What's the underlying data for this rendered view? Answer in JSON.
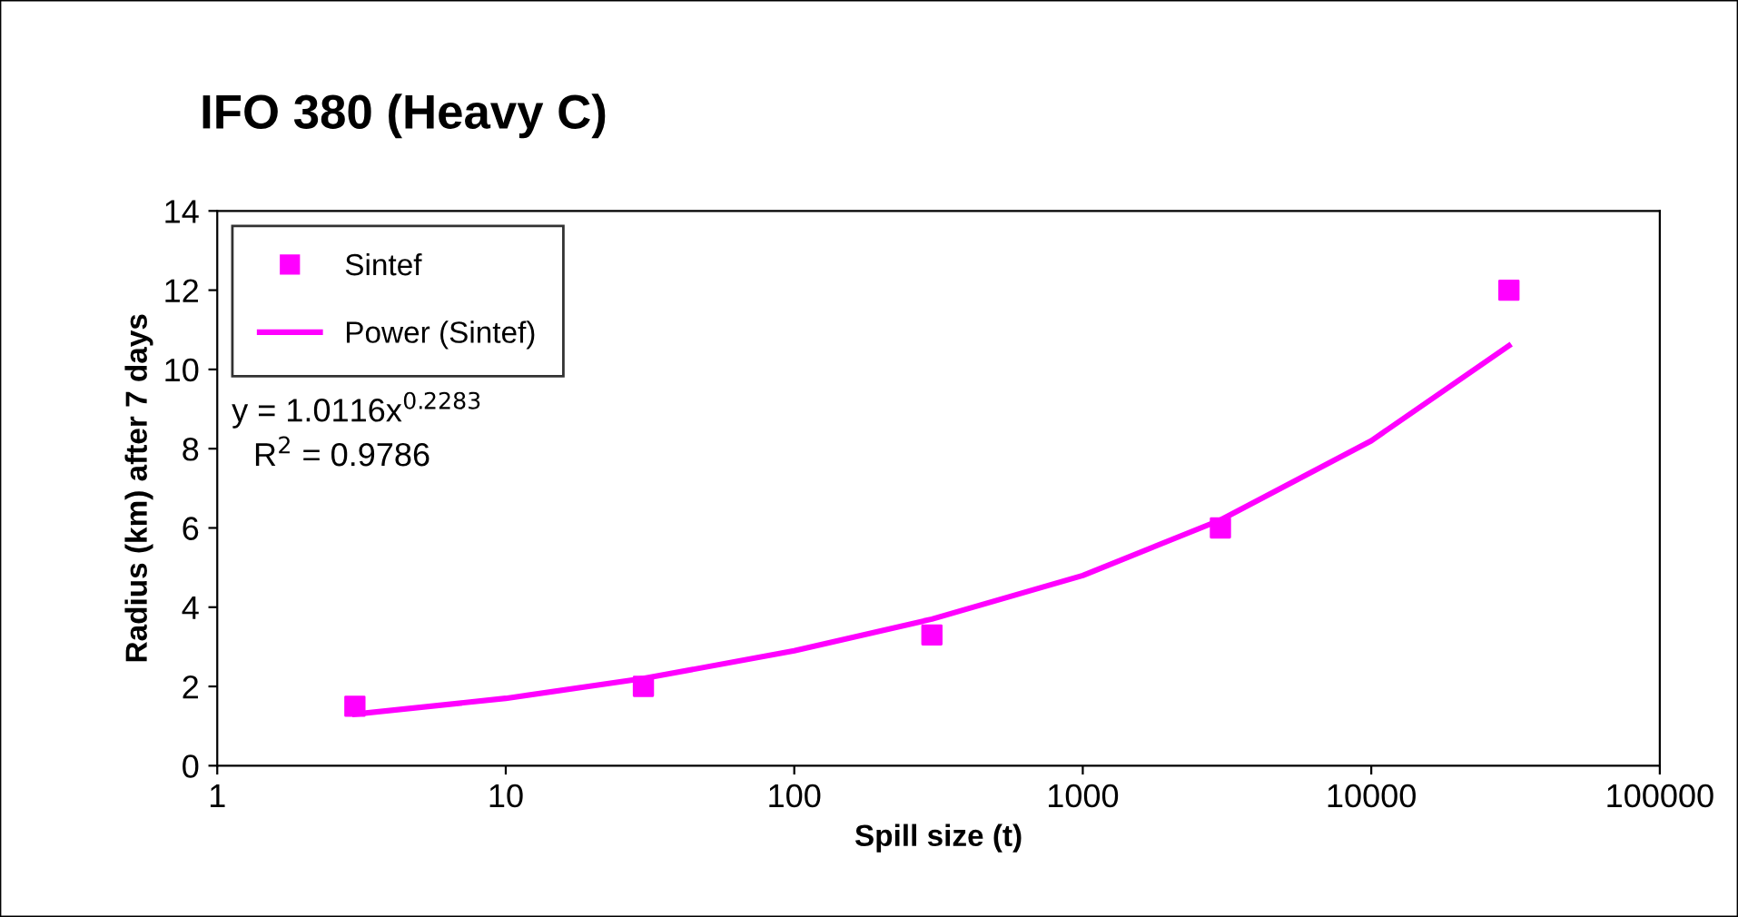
{
  "chart_data": {
    "type": "scatter",
    "title": "IFO 380 (Heavy C)",
    "xlabel": "Spill size (t)",
    "ylabel": "Radius (km) after 7 days",
    "x": [
      3,
      30,
      300,
      3000,
      30000
    ],
    "series": [
      {
        "name": "Sintef",
        "marker": "square",
        "color": "#ff00ff",
        "values": [
          1.5,
          2.0,
          3.3,
          6.0,
          12.0
        ]
      },
      {
        "name": "Power (Sintef)",
        "type": "line",
        "marker": "none",
        "line_style": "solid",
        "color": "#ff00ff",
        "x": [
          3,
          10,
          30,
          100,
          300,
          1000,
          3000,
          10000,
          30000
        ],
        "values": [
          1.3,
          1.7,
          2.2,
          2.9,
          3.7,
          4.8,
          6.2,
          8.2,
          10.6
        ]
      }
    ],
    "annotations": [
      "y = 1.0116x$^{0.2283}$",
      "R$^{2}$ = 0.9786"
    ],
    "log": "x",
    "xlim": [
      1,
      100000
    ],
    "xticks": [
      1,
      10,
      100,
      1000,
      10000,
      100000
    ],
    "ylim": [
      0,
      14
    ],
    "yticks": [
      0,
      2,
      4,
      6,
      8,
      10,
      12,
      14
    ],
    "grid": false,
    "legend": "top left"
  }
}
